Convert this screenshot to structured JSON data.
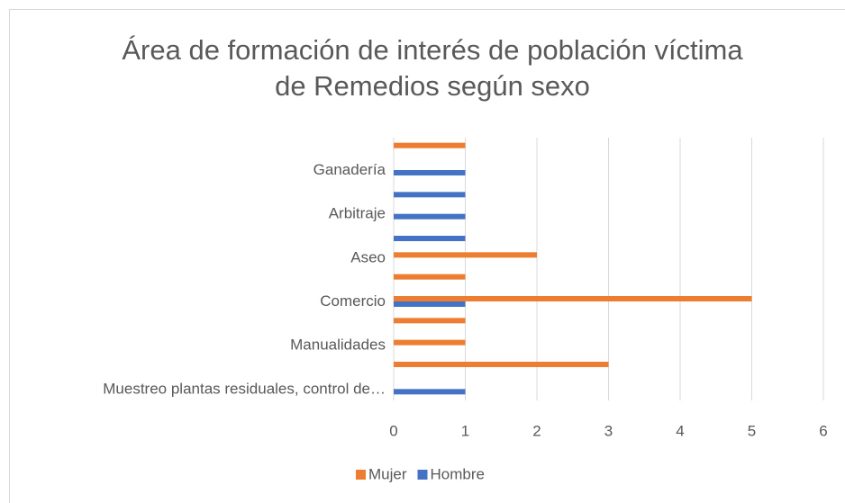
{
  "chart_data": {
    "type": "barh",
    "title": "Área de formación de interés de población víctima de Remedios según sexo",
    "categories": [
      null,
      "Ganadería",
      null,
      "Arbitraje",
      null,
      "Aseo",
      null,
      "Comercio",
      null,
      "Manualidades",
      null,
      "Muestreo plantas residuales, control de…"
    ],
    "series": [
      {
        "name": "Mujer",
        "color": "#ED7D31",
        "values": [
          1,
          null,
          null,
          null,
          null,
          2,
          1,
          5,
          1,
          1,
          3,
          null
        ]
      },
      {
        "name": "Hombre",
        "color": "#4472C4",
        "values": [
          null,
          1,
          1,
          1,
          1,
          null,
          null,
          1,
          null,
          null,
          null,
          1
        ]
      }
    ],
    "xlim": [
      0,
      6
    ],
    "xticks": [
      0,
      1,
      2,
      3,
      4,
      5,
      6
    ],
    "grid": true,
    "legend": "bottom"
  }
}
